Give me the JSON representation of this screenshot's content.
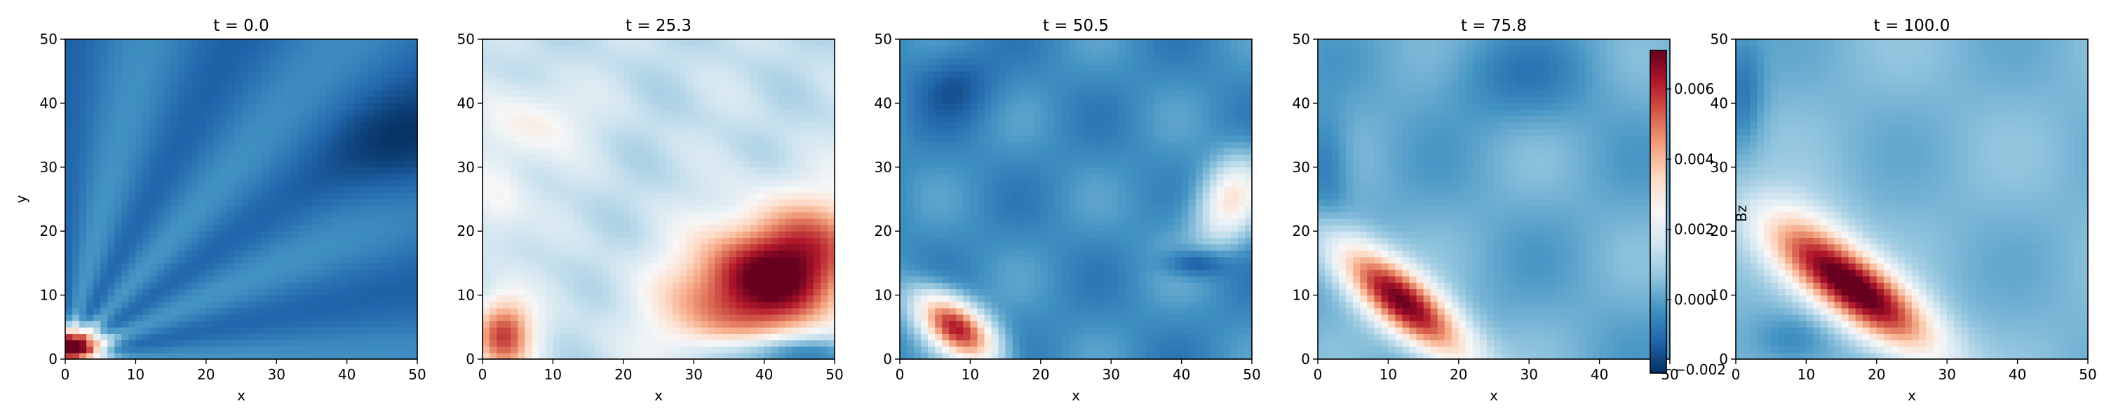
{
  "chart_data": {
    "type": "heatmap",
    "colormap": "RdBu_r",
    "panels": [
      {
        "title": "t = 0.0"
      },
      {
        "title": "t = 25.3"
      },
      {
        "title": "t = 50.5"
      },
      {
        "title": "t = 75.8"
      },
      {
        "title": "t = 100.0"
      }
    ],
    "xlabel": "x",
    "ylabel": "y",
    "xlim": [
      0,
      50
    ],
    "ylim": [
      0,
      50
    ],
    "xticks": [
      "0",
      "10",
      "20",
      "30",
      "40",
      "50"
    ],
    "yticks": [
      "0",
      "10",
      "20",
      "30",
      "40",
      "50"
    ],
    "colorbar": {
      "label": "Bz",
      "range": [
        -0.0021,
        0.0071
      ],
      "ticks": [
        "−0.002",
        "0.000",
        "0.002",
        "0.004",
        "0.006"
      ],
      "tick_values": [
        -0.002,
        0.0,
        0.002,
        0.004,
        0.006
      ]
    },
    "grid": false
  }
}
